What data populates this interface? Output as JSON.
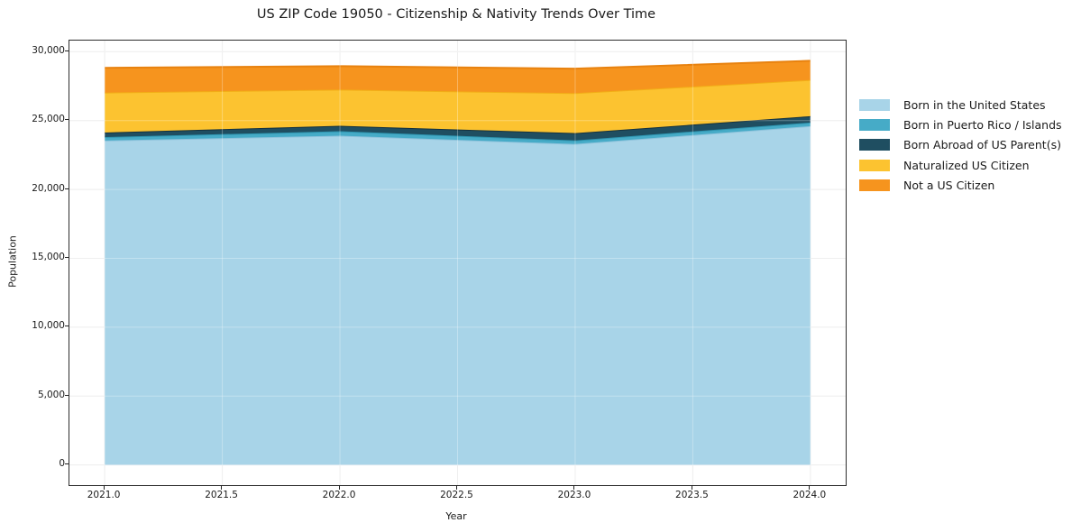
{
  "chart_data": {
    "type": "area",
    "stacked": true,
    "title": "US ZIP Code 19050 - Citizenship & Nativity Trends Over Time",
    "xlabel": "Year",
    "ylabel": "Population",
    "x": [
      2021,
      2022,
      2023,
      2024
    ],
    "series": [
      {
        "name": "Born in the United States",
        "color": "#A8D4E8",
        "edge": "#8FC3DC",
        "values": [
          23550,
          23900,
          23300,
          24600
        ]
      },
      {
        "name": "Born in Puerto Rico / Islands",
        "color": "#46ABC7",
        "edge": "#2E95B0",
        "values": [
          250,
          330,
          260,
          260
        ]
      },
      {
        "name": "Born Abroad of US Parent(s)",
        "color": "#1F4E61",
        "edge": "#15323F",
        "values": [
          330,
          390,
          530,
          460
        ]
      },
      {
        "name": "Naturalized US Citizen",
        "color": "#FCC330",
        "edge": "#F2AE17",
        "values": [
          2900,
          2630,
          2900,
          2630
        ]
      },
      {
        "name": "Not a US Citizen",
        "color": "#F6941E",
        "edge": "#E8820F",
        "values": [
          1800,
          1700,
          1780,
          1390
        ]
      }
    ],
    "x_ticks": {
      "values": [
        2021.0,
        2021.5,
        2022.0,
        2022.5,
        2023.0,
        2023.5,
        2024.0
      ],
      "labels": [
        "2021.0",
        "2021.5",
        "2022.0",
        "2022.5",
        "2023.0",
        "2023.5",
        "2024.0"
      ]
    },
    "y_ticks": {
      "values": [
        0,
        5000,
        10000,
        15000,
        20000,
        25000,
        30000
      ],
      "labels": [
        "0",
        "5,000",
        "10,000",
        "15,000",
        "20,000",
        "25,000",
        "30,000"
      ]
    },
    "xlim": [
      2020.85,
      2024.15
    ],
    "ylim": [
      -1467,
      30807
    ],
    "grid": true,
    "legend_position": "right-outside",
    "style": {
      "background": "#ffffff",
      "spine_color": "#2d2d2d",
      "grid_color": "#e8e8e8",
      "text_color": "#1a1a1a"
    }
  }
}
